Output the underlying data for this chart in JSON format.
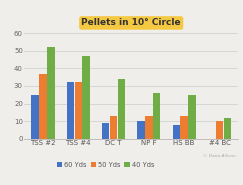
{
  "title": "Pellets in 10° Circle",
  "categories": [
    "TSS #2",
    "TSS #4",
    "DC T",
    "NP F",
    "HS BB",
    "#4 BC"
  ],
  "series": {
    "60 Yds": [
      25,
      32,
      9,
      10,
      8,
      0
    ],
    "50 Yds": [
      37,
      32,
      13,
      13,
      13,
      10
    ],
    "40 Yds": [
      52,
      47,
      34,
      26,
      25,
      12
    ]
  },
  "colors": {
    "60 Yds": "#4472c4",
    "50 Yds": "#ed7d31",
    "40 Yds": "#70ad47"
  },
  "ylim": [
    0,
    62
  ],
  "yticks": [
    0,
    10,
    20,
    30,
    40,
    50,
    60
  ],
  "title_fontsize": 6.5,
  "tick_fontsize": 5.0,
  "legend_fontsize": 4.8,
  "title_bg": "#f5c842",
  "watermark": "© Dana Allison",
  "background_color": "#f0eeeb"
}
